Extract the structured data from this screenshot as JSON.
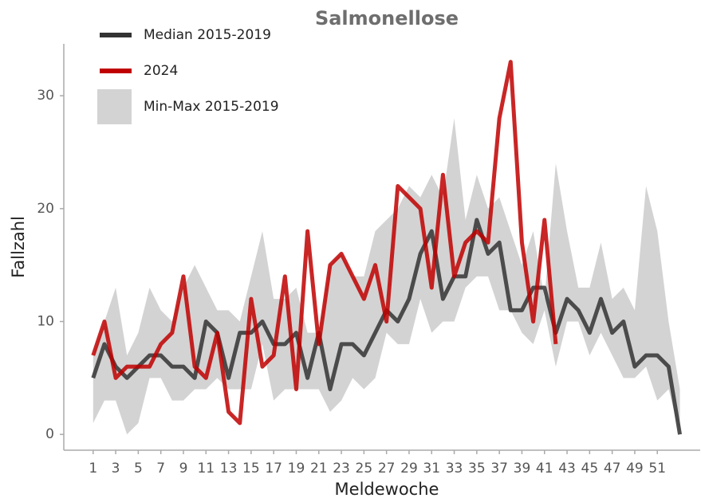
{
  "chart_data": {
    "type": "line",
    "title": "Salmonellose",
    "x_label": "Meldewoche",
    "y_label": "Fallzahl",
    "x": [
      1,
      2,
      3,
      4,
      5,
      6,
      7,
      8,
      9,
      10,
      11,
      12,
      13,
      14,
      15,
      16,
      17,
      18,
      19,
      20,
      21,
      22,
      23,
      24,
      25,
      26,
      27,
      28,
      29,
      30,
      31,
      32,
      33,
      34,
      35,
      36,
      37,
      38,
      39,
      40,
      41,
      42,
      43,
      44,
      45,
      46,
      47,
      48,
      49,
      50,
      51,
      52,
      53
    ],
    "series": [
      {
        "name": "Median 2015-2019",
        "color": "#333333",
        "values": [
          5,
          8,
          6,
          5,
          6,
          7,
          7,
          6,
          6,
          5,
          10,
          9,
          5,
          9,
          9,
          10,
          8,
          8,
          9,
          5,
          9,
          4,
          8,
          8,
          7,
          9,
          11,
          10,
          12,
          16,
          18,
          12,
          14,
          14,
          19,
          16,
          17,
          11,
          11,
          13,
          13,
          9,
          12,
          11,
          9,
          12,
          9,
          10,
          6,
          7,
          7,
          6,
          0
        ]
      },
      {
        "name": "2024",
        "color": "#c00000",
        "values": [
          7,
          10,
          5,
          6,
          6,
          6,
          8,
          9,
          14,
          6,
          5,
          9,
          2,
          1,
          12,
          6,
          7,
          14,
          4,
          18,
          8,
          15,
          16,
          14,
          12,
          15,
          10,
          22,
          21,
          20,
          13,
          23,
          14,
          17,
          18,
          17,
          28,
          33,
          17,
          10,
          19,
          8,
          null,
          null,
          null,
          null,
          null,
          null,
          null,
          null,
          null,
          null,
          null
        ]
      }
    ],
    "band": {
      "name": "Min-Max 2015-2019",
      "color": "#d3d3d3",
      "max": [
        7,
        10,
        13,
        7,
        9,
        13,
        11,
        10,
        13,
        15,
        13,
        11,
        11,
        10,
        14,
        18,
        12,
        12,
        13,
        9,
        9,
        15,
        16,
        14,
        14,
        18,
        19,
        20,
        22,
        21,
        23,
        21,
        28,
        19,
        23,
        20,
        21,
        18,
        15,
        18,
        12,
        24,
        18,
        13,
        13,
        17,
        12,
        13,
        11,
        22,
        18,
        10,
        4
      ],
      "min": [
        1,
        3,
        3,
        0,
        1,
        5,
        5,
        3,
        3,
        4,
        4,
        5,
        4,
        4,
        4,
        8,
        3,
        4,
        4,
        4,
        4,
        2,
        3,
        5,
        4,
        5,
        9,
        8,
        8,
        12,
        9,
        10,
        10,
        13,
        14,
        14,
        11,
        11,
        9,
        8,
        11,
        6,
        10,
        10,
        7,
        9,
        7,
        5,
        5,
        6,
        3,
        4,
        0
      ]
    },
    "xlim": [
      -1.6,
      54.8
    ],
    "ylim": [
      -1.4,
      34.6
    ],
    "xticks": [
      1,
      3,
      5,
      7,
      9,
      11,
      13,
      15,
      17,
      19,
      21,
      23,
      25,
      27,
      29,
      31,
      33,
      35,
      37,
      39,
      41,
      43,
      45,
      47,
      49,
      51
    ],
    "yticks": [
      0,
      10,
      20,
      30
    ],
    "grid": false,
    "legend": "top-left"
  }
}
